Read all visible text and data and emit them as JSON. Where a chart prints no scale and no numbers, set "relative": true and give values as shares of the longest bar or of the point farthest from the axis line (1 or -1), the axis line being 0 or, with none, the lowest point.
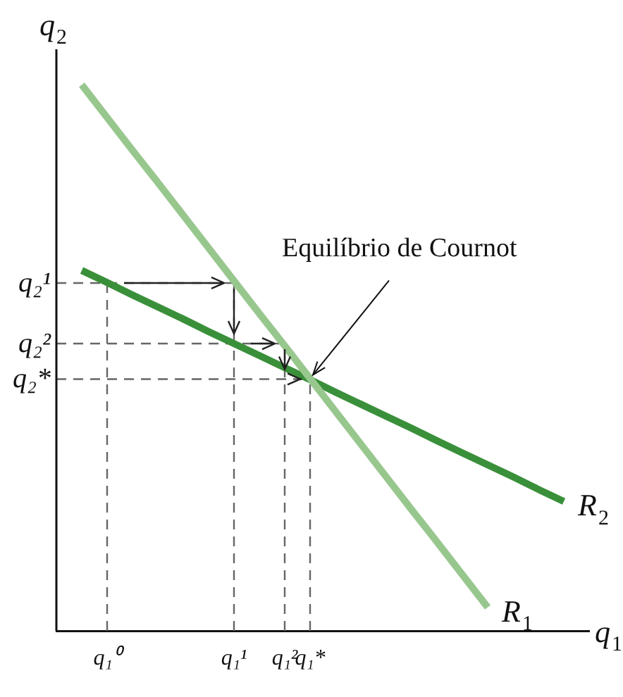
{
  "chart_data": {
    "type": "line",
    "relative": true,
    "xlabel": "q$_{1}$",
    "ylabel": "q$_{2}$",
    "legend": false,
    "grid": false,
    "marker": "none",
    "categories": [
      null,
      null,
      "q₁⁰",
      null,
      null,
      null,
      null,
      "q₁¹",
      null,
      "q₁²",
      "q₁*",
      null,
      null,
      null,
      null,
      null,
      null,
      null,
      null,
      null,
      null,
      null
    ],
    "series": [
      {
        "name": "R$_{1}$",
        "color": "#98c78e",
        "values": [
          null,
          1,
          0.94,
          0.88,
          0.821,
          0.761,
          0.701,
          0.641,
          0.581,
          0.522,
          0.462,
          0.402,
          0.342,
          0.282,
          0.222,
          0.163,
          0.103,
          0.043,
          null,
          null,
          null,
          null
        ]
      },
      {
        "name": "R$_{2}$",
        "color": "#3a903a",
        "values": [
          null,
          0.66,
          0.638,
          0.615,
          0.593,
          0.571,
          0.548,
          0.526,
          0.504,
          0.482,
          0.46,
          0.437,
          0.415,
          0.393,
          0.371,
          0.348,
          0.326,
          0.304,
          0.282,
          0.259,
          0.237,
          null
        ]
      }
    ],
    "ref_lines": [
      {
        "axis": "x",
        "value": "q₁⁰",
        "line_style": "dashed",
        "color": "#666666"
      },
      {
        "axis": "x",
        "value": "q₁¹",
        "line_style": "dashed",
        "color": "#666666"
      },
      {
        "axis": "x",
        "value": "q₁²",
        "line_style": "dashed",
        "color": "#666666"
      },
      {
        "axis": "x",
        "value": "q₁*",
        "line_style": "dashed",
        "color": "#666666"
      },
      {
        "axis": "y",
        "value": 0.637,
        "label": "q₂¹",
        "line_style": "dashed",
        "color": "#666666"
      },
      {
        "axis": "y",
        "value": 0.526,
        "label": "q₂²",
        "line_style": "dashed",
        "color": "#666666"
      },
      {
        "axis": "y",
        "value": 0.461,
        "label": "q₂*",
        "line_style": "dashed",
        "color": "#666666"
      }
    ],
    "annotations": [
      {
        "text": "Equilíbrio de Cournot",
        "x": "q₁*",
        "y": 0.461
      }
    ]
  }
}
